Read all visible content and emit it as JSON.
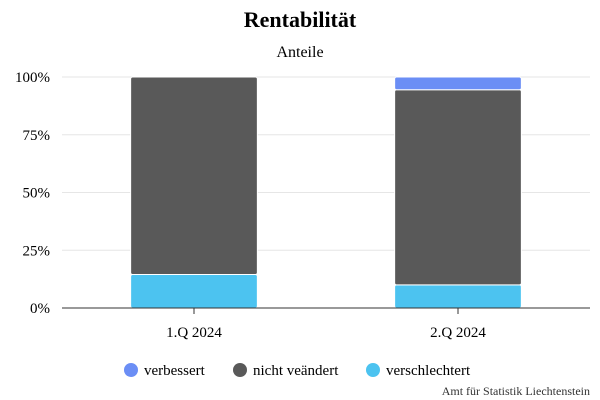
{
  "chart_data": {
    "type": "bar",
    "stacked": true,
    "title": "Rentabilität",
    "subtitle": "Anteile",
    "categories": [
      "1.Q 2024",
      "2.Q 2024"
    ],
    "series": [
      {
        "name": "verschlechtert",
        "color": "#4cc3f0",
        "values": [
          14.5,
          10
        ]
      },
      {
        "name": "nicht veändert",
        "color": "#595959",
        "values": [
          85.5,
          84.5
        ]
      },
      {
        "name": "verbessert",
        "color": "#6b8ef5",
        "values": [
          0,
          5.5
        ]
      }
    ],
    "legend_order": [
      "verbessert",
      "nicht veändert",
      "verschlechtert"
    ],
    "ylim": [
      0,
      100
    ],
    "yticks": [
      "0%",
      "25%",
      "50%",
      "75%",
      "100%"
    ],
    "ytick_values": [
      0,
      25,
      50,
      75,
      100
    ],
    "grid": true,
    "legend_position": "bottom"
  },
  "credit": "Amt für Statistik Liechtenstein"
}
